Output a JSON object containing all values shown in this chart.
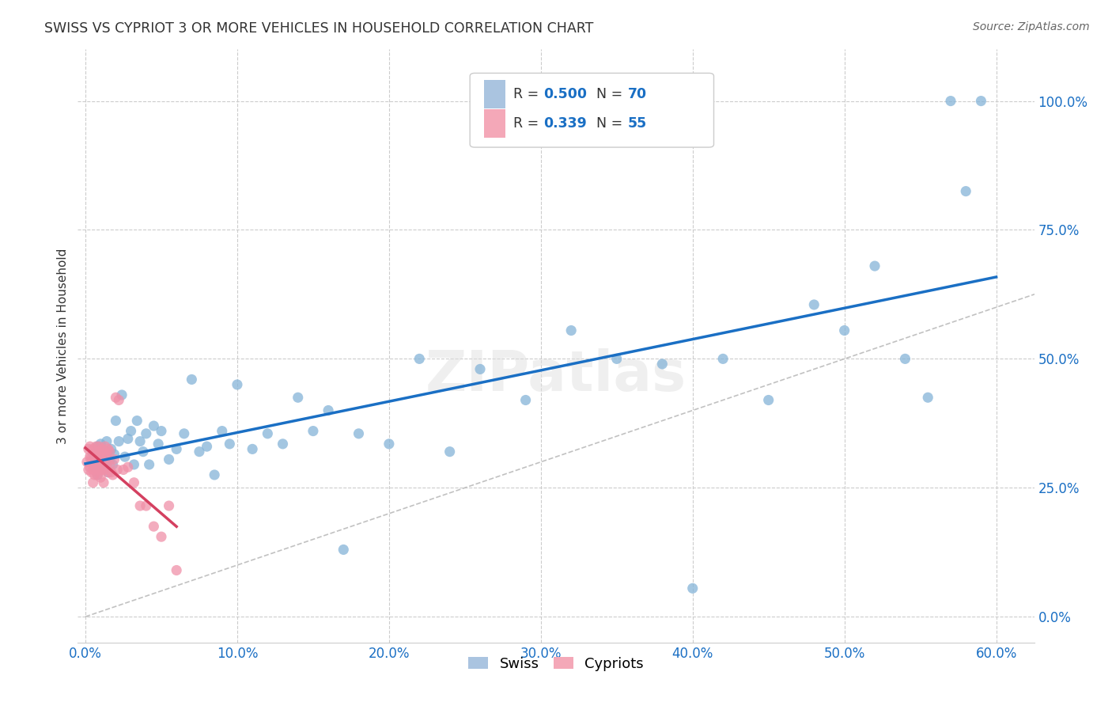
{
  "title": "SWISS VS CYPRIOT 3 OR MORE VEHICLES IN HOUSEHOLD CORRELATION CHART",
  "source": "Source: ZipAtlas.com",
  "ylabel": "3 or more Vehicles in Household",
  "swiss_R": "0.500",
  "swiss_N": "70",
  "cypriot_R": "0.339",
  "cypriot_N": "55",
  "swiss_color": "#aac4e0",
  "cypriot_color": "#f4a8b8",
  "swiss_scatter_color": "#85b4d8",
  "cypriot_scatter_color": "#f090a8",
  "trend_swiss_color": "#1a6fc4",
  "trend_cypriot_color": "#d44060",
  "diagonal_color": "#bbbbbb",
  "background_color": "#ffffff",
  "grid_color": "#cccccc",
  "swiss_x": [
    0.004,
    0.005,
    0.006,
    0.007,
    0.008,
    0.008,
    0.009,
    0.01,
    0.01,
    0.011,
    0.012,
    0.013,
    0.014,
    0.015,
    0.016,
    0.017,
    0.018,
    0.019,
    0.02,
    0.022,
    0.024,
    0.026,
    0.028,
    0.03,
    0.032,
    0.034,
    0.036,
    0.038,
    0.04,
    0.042,
    0.045,
    0.048,
    0.05,
    0.055,
    0.06,
    0.065,
    0.07,
    0.075,
    0.08,
    0.085,
    0.09,
    0.095,
    0.1,
    0.11,
    0.12,
    0.13,
    0.14,
    0.15,
    0.16,
    0.17,
    0.18,
    0.2,
    0.22,
    0.24,
    0.26,
    0.29,
    0.32,
    0.35,
    0.38,
    0.4,
    0.42,
    0.45,
    0.48,
    0.5,
    0.52,
    0.54,
    0.555,
    0.57,
    0.58,
    0.59
  ],
  "swiss_y": [
    0.3,
    0.315,
    0.29,
    0.305,
    0.33,
    0.275,
    0.31,
    0.295,
    0.335,
    0.31,
    0.29,
    0.32,
    0.34,
    0.28,
    0.305,
    0.325,
    0.295,
    0.315,
    0.38,
    0.34,
    0.43,
    0.31,
    0.345,
    0.36,
    0.295,
    0.38,
    0.34,
    0.32,
    0.355,
    0.295,
    0.37,
    0.335,
    0.36,
    0.305,
    0.325,
    0.355,
    0.46,
    0.32,
    0.33,
    0.275,
    0.36,
    0.335,
    0.45,
    0.325,
    0.355,
    0.335,
    0.425,
    0.36,
    0.4,
    0.13,
    0.355,
    0.335,
    0.5,
    0.32,
    0.48,
    0.42,
    0.555,
    0.5,
    0.49,
    0.055,
    0.5,
    0.42,
    0.605,
    0.555,
    0.68,
    0.5,
    0.425,
    1.0,
    0.825,
    1.0
  ],
  "cypriot_x": [
    0.001,
    0.002,
    0.002,
    0.003,
    0.003,
    0.003,
    0.004,
    0.004,
    0.005,
    0.005,
    0.005,
    0.006,
    0.006,
    0.006,
    0.007,
    0.007,
    0.007,
    0.007,
    0.008,
    0.008,
    0.008,
    0.009,
    0.009,
    0.009,
    0.01,
    0.01,
    0.01,
    0.011,
    0.011,
    0.012,
    0.012,
    0.013,
    0.013,
    0.013,
    0.014,
    0.014,
    0.015,
    0.015,
    0.016,
    0.016,
    0.017,
    0.018,
    0.019,
    0.02,
    0.021,
    0.022,
    0.025,
    0.028,
    0.032,
    0.036,
    0.04,
    0.045,
    0.05,
    0.055,
    0.06
  ],
  "cypriot_y": [
    0.3,
    0.285,
    0.325,
    0.29,
    0.31,
    0.33,
    0.28,
    0.31,
    0.26,
    0.285,
    0.325,
    0.29,
    0.31,
    0.275,
    0.295,
    0.315,
    0.285,
    0.33,
    0.275,
    0.295,
    0.32,
    0.285,
    0.31,
    0.33,
    0.27,
    0.29,
    0.315,
    0.285,
    0.325,
    0.26,
    0.29,
    0.285,
    0.31,
    0.33,
    0.295,
    0.315,
    0.28,
    0.325,
    0.295,
    0.32,
    0.28,
    0.275,
    0.305,
    0.425,
    0.285,
    0.42,
    0.285,
    0.29,
    0.26,
    0.215,
    0.215,
    0.175,
    0.155,
    0.215,
    0.09
  ],
  "xticks": [
    0.0,
    0.1,
    0.2,
    0.3,
    0.4,
    0.5,
    0.6
  ],
  "yticks": [
    0.0,
    0.25,
    0.5,
    0.75,
    1.0
  ],
  "xlim": [
    -0.005,
    0.625
  ],
  "ylim": [
    -0.05,
    1.1
  ]
}
